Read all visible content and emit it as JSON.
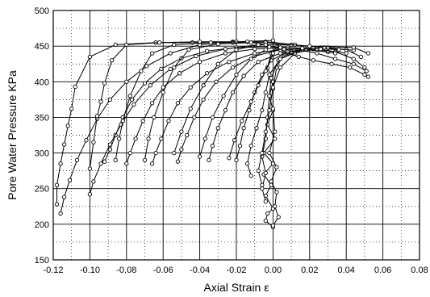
{
  "chart_data": {
    "type": "line",
    "xlabel": "Axial Strain ε",
    "ylabel": "Pore Water Pressure KPa",
    "xlim": [
      -0.12,
      0.08
    ],
    "ylim": [
      150,
      500
    ],
    "x_ticks": [
      "-0.12",
      "-0.10",
      "-0.08",
      "-0.06",
      "-0.04",
      "-0.02",
      "0.00",
      "0.02",
      "0.04",
      "0.06",
      "0.08"
    ],
    "x_tick_values": [
      -0.12,
      -0.1,
      -0.08,
      -0.06,
      -0.04,
      -0.02,
      0.0,
      0.02,
      0.04,
      0.06,
      0.08
    ],
    "y_ticks": [
      "150",
      "200",
      "250",
      "300",
      "350",
      "400",
      "450",
      "500"
    ],
    "y_tick_values": [
      150,
      200,
      250,
      300,
      350,
      400,
      450,
      500
    ],
    "grid": true,
    "minor_grid": true,
    "marker": "open-circle",
    "series": [
      {
        "points": [
          [
            0.0,
            196
          ],
          [
            -0.004,
            205
          ],
          [
            -0.003,
            215
          ],
          [
            0.0,
            222
          ],
          [
            -0.004,
            240
          ],
          [
            -0.001,
            255
          ],
          [
            -0.005,
            270
          ],
          [
            0.0,
            285
          ],
          [
            -0.005,
            300
          ],
          [
            0.001,
            320
          ],
          [
            -0.003,
            340
          ],
          [
            0.0,
            360
          ],
          [
            -0.002,
            380
          ],
          [
            0.0,
            400
          ],
          [
            -0.003,
            420
          ],
          [
            -0.001,
            440
          ],
          [
            0.002,
            448
          ],
          [
            0.008,
            440
          ],
          [
            0.014,
            435
          ],
          [
            0.022,
            430
          ],
          [
            0.032,
            425
          ],
          [
            0.042,
            420
          ],
          [
            0.05,
            410
          ],
          [
            0.052,
            407
          ]
        ]
      },
      {
        "points": [
          [
            0.0,
            198
          ],
          [
            0.003,
            210
          ],
          [
            0.001,
            225
          ],
          [
            0.002,
            245
          ],
          [
            -0.001,
            260
          ],
          [
            0.002,
            280
          ],
          [
            -0.002,
            300
          ],
          [
            0.001,
            330
          ],
          [
            0.0,
            362
          ],
          [
            0.0,
            390
          ],
          [
            0.002,
            420
          ],
          [
            0.006,
            440
          ],
          [
            0.014,
            445
          ],
          [
            0.024,
            440
          ],
          [
            0.034,
            432
          ],
          [
            0.044,
            425
          ],
          [
            0.051,
            415
          ]
        ]
      },
      {
        "points": [
          [
            -0.004,
            232
          ],
          [
            -0.006,
            250
          ],
          [
            -0.004,
            272
          ],
          [
            -0.006,
            295
          ],
          [
            -0.004,
            320
          ],
          [
            -0.003,
            350
          ],
          [
            -0.002,
            380
          ],
          [
            -0.001,
            405
          ],
          [
            0.003,
            430
          ],
          [
            0.01,
            442
          ],
          [
            0.022,
            446
          ],
          [
            0.034,
            442
          ],
          [
            0.044,
            432
          ],
          [
            0.05,
            420
          ]
        ]
      },
      {
        "points": [
          [
            -0.006,
            255
          ],
          [
            -0.008,
            275
          ],
          [
            -0.006,
            300
          ],
          [
            -0.004,
            330
          ],
          [
            -0.002,
            360
          ],
          [
            0.0,
            392
          ],
          [
            0.004,
            420
          ],
          [
            0.012,
            440
          ],
          [
            0.026,
            448
          ],
          [
            0.04,
            445
          ],
          [
            0.048,
            435
          ]
        ]
      },
      {
        "points": [
          [
            -0.012,
            268
          ],
          [
            -0.014,
            285
          ],
          [
            -0.012,
            310
          ],
          [
            -0.009,
            335
          ],
          [
            -0.006,
            360
          ],
          [
            -0.004,
            385
          ],
          [
            -0.002,
            410
          ],
          [
            0.004,
            432
          ],
          [
            0.016,
            445
          ],
          [
            0.03,
            448
          ],
          [
            0.044,
            444
          ]
        ]
      },
      {
        "points": [
          [
            -0.02,
            290
          ],
          [
            -0.018,
            310
          ],
          [
            -0.016,
            335
          ],
          [
            -0.013,
            360
          ],
          [
            -0.01,
            385
          ],
          [
            -0.006,
            410
          ],
          [
            -0.001,
            430
          ],
          [
            0.008,
            442
          ],
          [
            0.022,
            447
          ],
          [
            0.036,
            445
          ]
        ]
      },
      {
        "points": [
          [
            -0.035,
            290
          ],
          [
            -0.033,
            310
          ],
          [
            -0.03,
            335
          ],
          [
            -0.026,
            360
          ],
          [
            -0.022,
            385
          ],
          [
            -0.016,
            408
          ],
          [
            -0.008,
            428
          ],
          [
            0.004,
            440
          ],
          [
            0.018,
            445
          ],
          [
            0.03,
            442
          ]
        ]
      },
      {
        "points": [
          [
            -0.052,
            288
          ],
          [
            -0.05,
            305
          ],
          [
            -0.047,
            325
          ],
          [
            -0.043,
            350
          ],
          [
            -0.038,
            375
          ],
          [
            -0.031,
            400
          ],
          [
            -0.022,
            420
          ],
          [
            -0.01,
            436
          ],
          [
            0.004,
            445
          ],
          [
            0.018,
            446
          ],
          [
            0.034,
            440
          ]
        ]
      },
      {
        "points": [
          [
            -0.066,
            285
          ],
          [
            -0.064,
            300
          ],
          [
            -0.061,
            320
          ],
          [
            -0.057,
            345
          ],
          [
            -0.052,
            370
          ],
          [
            -0.045,
            392
          ],
          [
            -0.036,
            412
          ],
          [
            -0.024,
            428
          ],
          [
            -0.01,
            440
          ],
          [
            0.006,
            446
          ],
          [
            0.024,
            446
          ],
          [
            0.04,
            440
          ]
        ]
      },
      {
        "points": [
          [
            -0.08,
            285
          ],
          [
            -0.078,
            300
          ],
          [
            -0.075,
            320
          ],
          [
            -0.071,
            345
          ],
          [
            -0.066,
            370
          ],
          [
            -0.06,
            392
          ],
          [
            -0.051,
            412
          ],
          [
            -0.04,
            428
          ],
          [
            -0.026,
            440
          ],
          [
            -0.01,
            446
          ],
          [
            0.008,
            448
          ],
          [
            0.026,
            446
          ]
        ]
      },
      {
        "points": [
          [
            -0.092,
            288
          ],
          [
            -0.089,
            305
          ],
          [
            -0.086,
            325
          ],
          [
            -0.082,
            350
          ],
          [
            -0.077,
            375
          ],
          [
            -0.07,
            398
          ],
          [
            -0.061,
            418
          ],
          [
            -0.05,
            433
          ],
          [
            -0.036,
            443
          ],
          [
            -0.02,
            448
          ],
          [
            -0.002,
            449
          ],
          [
            0.016,
            447
          ]
        ]
      },
      {
        "points": [
          [
            -0.1,
            242
          ],
          [
            -0.098,
            260
          ],
          [
            -0.094,
            285
          ],
          [
            -0.089,
            312
          ],
          [
            -0.083,
            340
          ],
          [
            -0.076,
            368
          ],
          [
            -0.067,
            395
          ],
          [
            -0.056,
            418
          ],
          [
            -0.042,
            436
          ],
          [
            -0.026,
            446
          ],
          [
            -0.008,
            452
          ],
          [
            0.01,
            452
          ],
          [
            0.028,
            448
          ]
        ]
      },
      {
        "points": [
          [
            -0.116,
            215
          ],
          [
            -0.114,
            238
          ],
          [
            -0.111,
            262
          ],
          [
            -0.107,
            290
          ],
          [
            -0.102,
            318
          ],
          [
            -0.096,
            348
          ],
          [
            -0.089,
            375
          ],
          [
            -0.08,
            400
          ],
          [
            -0.069,
            422
          ],
          [
            -0.056,
            440
          ],
          [
            -0.04,
            452
          ],
          [
            -0.022,
            456
          ],
          [
            -0.004,
            456
          ],
          [
            0.012,
            452
          ]
        ]
      },
      {
        "points": [
          [
            -0.118,
            228
          ],
          [
            -0.118,
            255
          ],
          [
            -0.116,
            285
          ],
          [
            -0.114,
            312
          ],
          [
            -0.112,
            338
          ],
          [
            -0.11,
            362
          ],
          [
            -0.108,
            393
          ],
          [
            -0.1,
            435
          ],
          [
            -0.086,
            452
          ],
          [
            -0.064,
            455
          ],
          [
            -0.044,
            455
          ],
          [
            -0.022,
            455
          ],
          [
            -0.004,
            455
          ],
          [
            0.02,
            450
          ],
          [
            0.044,
            448
          ],
          [
            0.052,
            440
          ]
        ]
      },
      {
        "points": [
          [
            -0.1,
            278
          ],
          [
            -0.098,
            315
          ],
          [
            -0.096,
            352
          ],
          [
            -0.094,
            372
          ],
          [
            -0.092,
            398
          ],
          [
            -0.088,
            430
          ],
          [
            -0.08,
            452
          ],
          [
            -0.062,
            455
          ],
          [
            -0.04,
            456
          ],
          [
            -0.02,
            456
          ],
          [
            0.0,
            458
          ],
          [
            0.004,
            448
          ]
        ]
      },
      {
        "points": [
          [
            -0.086,
            290
          ],
          [
            -0.084,
            320
          ],
          [
            -0.082,
            345
          ],
          [
            -0.078,
            380
          ],
          [
            -0.072,
            415
          ],
          [
            -0.066,
            440
          ],
          [
            -0.054,
            452
          ],
          [
            -0.034,
            455
          ],
          [
            -0.014,
            456
          ],
          [
            -0.004,
            452
          ]
        ]
      },
      {
        "points": [
          [
            -0.07,
            290
          ],
          [
            -0.068,
            320
          ],
          [
            -0.065,
            350
          ],
          [
            -0.06,
            385
          ],
          [
            -0.054,
            420
          ],
          [
            -0.046,
            445
          ],
          [
            -0.03,
            453
          ],
          [
            -0.012,
            455
          ]
        ]
      },
      {
        "points": [
          [
            -0.054,
            300
          ],
          [
            -0.05,
            330
          ],
          [
            -0.045,
            362
          ],
          [
            -0.038,
            395
          ],
          [
            -0.03,
            425
          ],
          [
            -0.02,
            445
          ],
          [
            -0.008,
            452
          ]
        ]
      },
      {
        "points": [
          [
            -0.04,
            295
          ],
          [
            -0.037,
            320
          ],
          [
            -0.033,
            350
          ],
          [
            -0.027,
            380
          ],
          [
            -0.02,
            410
          ],
          [
            -0.012,
            432
          ],
          [
            -0.004,
            445
          ]
        ]
      },
      {
        "points": [
          [
            -0.024,
            293
          ],
          [
            -0.021,
            318
          ],
          [
            -0.017,
            345
          ],
          [
            -0.012,
            372
          ],
          [
            -0.008,
            395
          ],
          [
            -0.004,
            415
          ],
          [
            0.0,
            440
          ]
        ]
      }
    ]
  }
}
